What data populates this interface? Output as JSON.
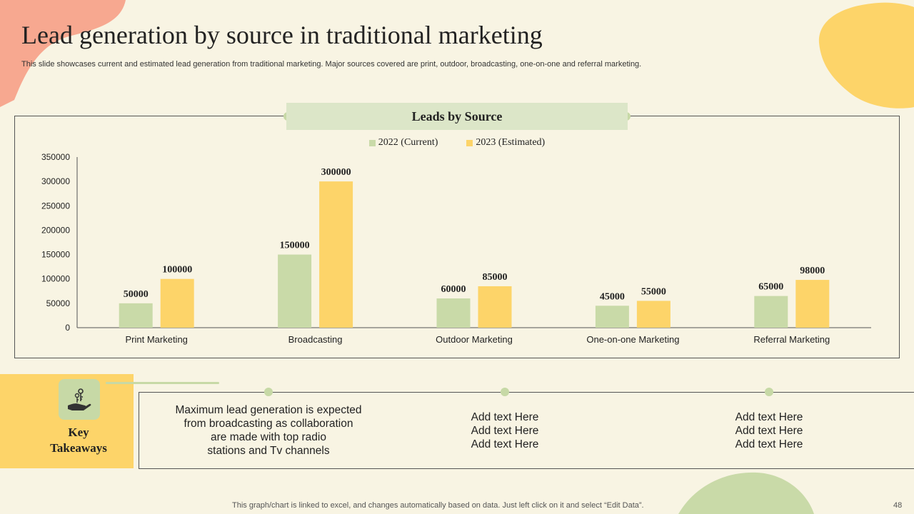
{
  "title": "Lead generation by source in traditional marketing",
  "subtitle": "This slide showcases current and estimated lead generation from traditional marketing. Major sources covered are print, outdoor, broadcasting, one-on-one and referral marketing.",
  "chart_data": {
    "type": "bar",
    "title": "Leads by Source",
    "categories": [
      "Print Marketing",
      "Broadcasting",
      "Outdoor Marketing",
      "One-on-one Marketing",
      "Referral Marketing"
    ],
    "series": [
      {
        "name": "2022 (Current)",
        "values": [
          50000,
          150000,
          60000,
          45000,
          65000
        ],
        "color": "#c9daa8"
      },
      {
        "name": "2023 (Estimated)",
        "values": [
          100000,
          300000,
          85000,
          55000,
          98000
        ],
        "color": "#fdd469"
      }
    ],
    "ylim": [
      0,
      350000
    ],
    "yticks": [
      0,
      50000,
      100000,
      150000,
      200000,
      250000,
      300000,
      350000
    ],
    "grid": false,
    "legend_position": "top"
  },
  "takeaways": {
    "label_line1": "Key",
    "label_line2": "Takeaways",
    "icon": "hand-with-keys-icon",
    "notes": [
      [
        "Maximum lead generation is expected",
        "from broadcasting as collaboration",
        "are made with top radio",
        "stations and Tv channels"
      ],
      [
        "Add text Here",
        "Add text Here",
        "Add text Here"
      ],
      [
        "Add text Here",
        "Add text Here",
        "Add text Here"
      ]
    ]
  },
  "footer": "This graph/chart is linked to excel, and changes automatically based on data. Just left click on it and select “Edit Data”.",
  "page_number": "48",
  "colors": {
    "background": "#f8f4e3",
    "green": "#c9daa8",
    "yellow": "#fdd469",
    "salmon": "#f7a890"
  }
}
